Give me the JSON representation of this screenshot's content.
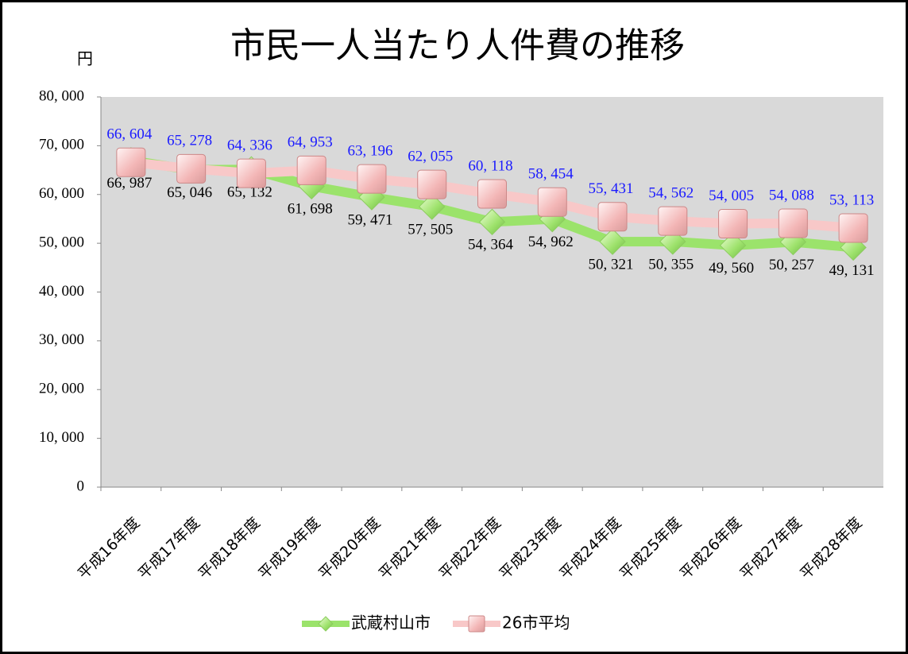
{
  "chart_data": {
    "type": "line",
    "title": "市民一人当たり人件費の推移",
    "y_label": "円",
    "categories": [
      "平成16年度",
      "平成17年度",
      "平成18年度",
      "平成19年度",
      "平成20年度",
      "平成21年度",
      "平成22年度",
      "平成23年度",
      "平成24年度",
      "平成25年度",
      "平成26年度",
      "平成27年度",
      "平成28年度"
    ],
    "series": [
      {
        "name": "武蔵村山市",
        "color": "#9be36b",
        "label_color": "#000000",
        "values": [
          66987,
          65046,
          65132,
          61698,
          59471,
          57505,
          54364,
          54962,
          50321,
          50355,
          49560,
          50257,
          49131
        ],
        "value_labels": [
          "66, 987",
          "65, 046",
          "65, 132",
          "61, 698",
          "59, 471",
          "57, 505",
          "54, 364",
          "54, 962",
          "50, 321",
          "50, 355",
          "49, 560",
          "50, 257",
          "49, 131"
        ]
      },
      {
        "name": "26市平均",
        "color": "#f8c8c8",
        "label_color": "#1a1aff",
        "values": [
          66604,
          65278,
          64336,
          64953,
          63196,
          62055,
          60118,
          58454,
          55431,
          54562,
          54005,
          54088,
          53113
        ],
        "value_labels": [
          "66, 604",
          "65, 278",
          "64, 336",
          "64, 953",
          "63, 196",
          "62, 055",
          "60, 118",
          "58, 454",
          "55, 431",
          "54, 562",
          "54, 005",
          "54, 088",
          "53, 113"
        ]
      }
    ],
    "ylim": [
      0,
      80000
    ],
    "yticks": [
      0,
      {
        "value": 10000,
        "label": "10, 000"
      },
      {
        "value": 20000,
        "label": "20, 000"
      },
      {
        "value": 30000,
        "label": "30, 000"
      },
      {
        "value": 40000,
        "label": "40, 000"
      },
      {
        "value": 50000,
        "label": "50, 000"
      },
      {
        "value": 60000,
        "label": "60, 000"
      },
      {
        "value": 70000,
        "label": "70, 000"
      },
      {
        "value": 80000,
        "label": "80, 000"
      }
    ],
    "plot_background": "#d9d9d9"
  }
}
